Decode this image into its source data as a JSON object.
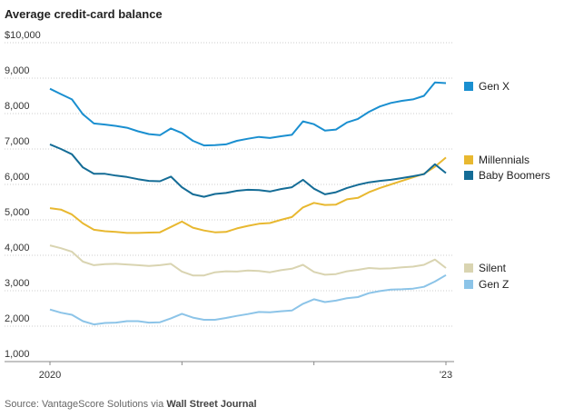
{
  "chart_data": {
    "type": "line",
    "title": "Average credit-card balance",
    "source": "Source: VantageScore Solutions via",
    "source_emph": "Wall Street Journal",
    "categories": [
      "2020",
      null,
      null,
      null,
      null,
      null,
      null,
      null,
      null,
      null,
      null,
      null,
      null,
      null,
      null,
      null,
      null,
      null,
      null,
      null,
      null,
      null,
      null,
      null,
      null,
      null,
      null,
      null,
      null,
      null,
      null,
      null,
      null,
      null,
      null,
      null,
      "'23"
    ],
    "series": [
      {
        "name": "Gen X",
        "color": "#1a8fd0",
        "values": [
          8700,
          8550,
          8400,
          7980,
          7720,
          7690,
          7650,
          7600,
          7500,
          7420,
          7390,
          7580,
          7450,
          7230,
          7100,
          7110,
          7130,
          7230,
          7290,
          7340,
          7310,
          7360,
          7400,
          7780,
          7700,
          7520,
          7550,
          7750,
          7850,
          8050,
          8200,
          8300,
          8360,
          8400,
          8500,
          8880,
          8860
        ]
      },
      {
        "name": "Millennials",
        "color": "#e8b830",
        "values": [
          5330,
          5290,
          5150,
          4900,
          4720,
          4680,
          4660,
          4630,
          4630,
          4640,
          4650,
          4800,
          4950,
          4780,
          4700,
          4650,
          4660,
          4760,
          4830,
          4890,
          4910,
          5000,
          5080,
          5350,
          5480,
          5420,
          5430,
          5580,
          5620,
          5780,
          5900,
          6000,
          6100,
          6200,
          6300,
          6500,
          6760
        ]
      },
      {
        "name": "Baby Boomers",
        "color": "#146c96",
        "values": [
          7130,
          7000,
          6850,
          6480,
          6300,
          6300,
          6250,
          6210,
          6150,
          6100,
          6090,
          6220,
          5920,
          5720,
          5650,
          5730,
          5760,
          5820,
          5850,
          5840,
          5800,
          5870,
          5920,
          6130,
          5880,
          5720,
          5780,
          5900,
          5990,
          6060,
          6100,
          6130,
          6180,
          6230,
          6290,
          6570,
          6320
        ]
      },
      {
        "name": "Silent",
        "color": "#d9d4b1",
        "values": [
          4280,
          4200,
          4100,
          3820,
          3720,
          3750,
          3760,
          3740,
          3720,
          3700,
          3720,
          3760,
          3540,
          3430,
          3430,
          3520,
          3550,
          3540,
          3570,
          3560,
          3520,
          3580,
          3620,
          3730,
          3530,
          3450,
          3470,
          3550,
          3590,
          3640,
          3620,
          3630,
          3660,
          3680,
          3730,
          3880,
          3640
        ]
      },
      {
        "name": "Gen Z",
        "color": "#8cc4e8",
        "values": [
          2470,
          2380,
          2320,
          2140,
          2050,
          2090,
          2100,
          2140,
          2140,
          2100,
          2110,
          2220,
          2350,
          2240,
          2180,
          2180,
          2230,
          2290,
          2340,
          2400,
          2390,
          2420,
          2440,
          2630,
          2760,
          2680,
          2720,
          2790,
          2820,
          2930,
          2990,
          3030,
          3040,
          3060,
          3110,
          3260,
          3440
        ]
      }
    ],
    "ylim": [
      1000,
      10000
    ],
    "yticks": [
      {
        "value": 1000,
        "label": "1,000"
      },
      {
        "value": 2000,
        "label": "2,000"
      },
      {
        "value": 3000,
        "label": "3,000"
      },
      {
        "value": 4000,
        "label": "4,000"
      },
      {
        "value": 5000,
        "label": "5,000"
      },
      {
        "value": 6000,
        "label": "6,000"
      },
      {
        "value": 7000,
        "label": "7,000"
      },
      {
        "value": 8000,
        "label": "8,000"
      },
      {
        "value": 9000,
        "label": "9,000"
      },
      {
        "value": 10000,
        "label": "$10,000"
      }
    ],
    "grid": true
  }
}
